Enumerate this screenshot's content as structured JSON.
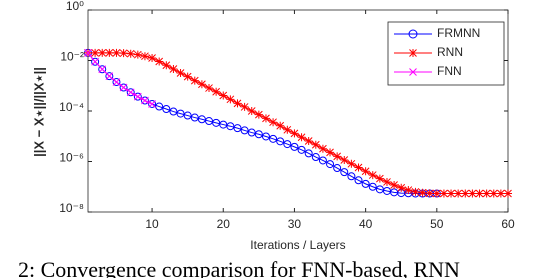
{
  "chart_data": {
    "type": "line",
    "yscale": "log",
    "xlabel": "Iterations / Layers",
    "ylabel": "||X − X⋆||/||X⋆||",
    "caption": "2: Convergence comparison for FNN-based, RNN",
    "legend": "upper right",
    "xlim": [
      1,
      60
    ],
    "xticks": [
      10,
      20,
      30,
      40,
      50,
      60
    ],
    "ylim": [
      1e-08,
      1
    ],
    "yticks": [
      {
        "value": 1,
        "label": "10⁰"
      },
      {
        "value": 0.01,
        "label": "10⁻²"
      },
      {
        "value": 0.0001,
        "label": "10⁻⁴"
      },
      {
        "value": 1e-06,
        "label": "10⁻⁶"
      },
      {
        "value": 1e-08,
        "label": "10⁻⁸"
      }
    ],
    "x": [
      1,
      2,
      3,
      4,
      5,
      6,
      7,
      8,
      9,
      10,
      11,
      12,
      13,
      14,
      15,
      16,
      17,
      18,
      19,
      20,
      21,
      22,
      23,
      24,
      25,
      26,
      27,
      28,
      29,
      30,
      31,
      32,
      33,
      34,
      35,
      36,
      37,
      38,
      39,
      40,
      41,
      42,
      43,
      44,
      45,
      46,
      47,
      48,
      49,
      50,
      51,
      52,
      53,
      54,
      55,
      56,
      57,
      58,
      59,
      60
    ],
    "series": [
      {
        "name": "FRMNN",
        "color": "#0000ff",
        "marker": "circle",
        "values": [
          0.02,
          0.0089,
          0.0045,
          0.0024,
          0.0014,
          0.00085,
          0.00055,
          0.00037,
          0.00026,
          0.00019,
          0.00015,
          0.00012,
          9.5e-05,
          7.9e-05,
          6.6e-05,
          5.5e-05,
          4.7e-05,
          4e-05,
          3.4e-05,
          2.9e-05,
          2.5e-05,
          2.1e-05,
          1.7e-05,
          1.4e-05,
          1.2e-05,
          9.8e-06,
          7.9e-06,
          6.3e-06,
          4.9e-06,
          3.8e-06,
          2.9e-06,
          2.1e-06,
          1.5e-06,
          1.1e-06,
          7.9e-07,
          5.5e-07,
          3.8e-07,
          2.6e-07,
          1.8e-07,
          1.3e-07,
          1e-07,
          7.9e-08,
          6.8e-08,
          6e-08,
          5.6e-08,
          5.5e-08,
          5.4e-08,
          5.4e-08,
          5.4e-08,
          5.4e-08,
          null,
          null,
          null,
          null,
          null,
          null,
          null,
          null,
          null,
          null
        ]
      },
      {
        "name": "RNN",
        "color": "#ff0000",
        "marker": "asterisk",
        "values": [
          0.02,
          0.02,
          0.02,
          0.02,
          0.02,
          0.0195,
          0.0186,
          0.017,
          0.0148,
          0.0126,
          0.0091,
          0.0065,
          0.0046,
          0.0032,
          0.0023,
          0.0016,
          0.00115,
          0.00081,
          0.00058,
          0.00041,
          0.00029,
          0.0002,
          0.000145,
          0.0001,
          7.2e-05,
          5.1e-05,
          3.6e-05,
          2.6e-05,
          1.8e-05,
          1.3e-05,
          9.1e-06,
          6.5e-06,
          4.6e-06,
          3.2e-06,
          2.3e-06,
          1.6e-06,
          1.15e-06,
          8.1e-07,
          5.8e-07,
          4.1e-07,
          2.9e-07,
          2.1e-07,
          1.55e-07,
          1.17e-07,
          9.1e-08,
          7.4e-08,
          6.3e-08,
          5.8e-08,
          5.5e-08,
          5.4e-08,
          5.4e-08,
          5.4e-08,
          5.4e-08,
          5.4e-08,
          5.4e-08,
          5.4e-08,
          5.4e-08,
          5.4e-08,
          5.4e-08,
          5.4e-08
        ]
      },
      {
        "name": "FNN",
        "color": "#ff00ff",
        "marker": "x",
        "values": [
          0.02,
          0.0089,
          0.0045,
          0.0024,
          0.0014,
          0.00085,
          0.00055,
          0.00037,
          0.00026,
          0.00019,
          null,
          null,
          null,
          null,
          null,
          null,
          null,
          null,
          null,
          null,
          null,
          null,
          null,
          null,
          null,
          null,
          null,
          null,
          null,
          null,
          null,
          null,
          null,
          null,
          null,
          null,
          null,
          null,
          null,
          null,
          null,
          null,
          null,
          null,
          null,
          null,
          null,
          null,
          null,
          null,
          null,
          null,
          null,
          null,
          null,
          null,
          null,
          null,
          null,
          null
        ]
      }
    ]
  }
}
